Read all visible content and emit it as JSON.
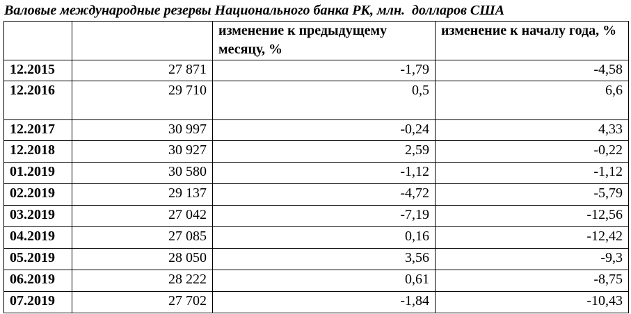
{
  "title": "Валовые международные резервы Национального банка РК, млн.  долларов США",
  "table": {
    "header": [
      "",
      "",
      "изменение к предыдущему месяцу, %",
      "изменение к началу года, %"
    ],
    "rows": [
      [
        "12.2015",
        "27 871",
        "-1,79",
        "-4,58"
      ],
      [
        "12.2016",
        "29 710",
        "0,5",
        "6,6"
      ],
      [
        "12.2017",
        "30 997",
        "-0,24",
        "4,33"
      ],
      [
        "12.2018",
        "30 927",
        "2,59",
        "-0,22"
      ],
      [
        "01.2019",
        "30 580",
        "-1,12",
        "-1,12"
      ],
      [
        "02.2019",
        "29 137",
        "-4,72",
        "-5,79"
      ],
      [
        "03.2019",
        "27 042",
        "-7,19",
        "-12,56"
      ],
      [
        "04.2019",
        "27 085",
        "0,16",
        "-12,42"
      ],
      [
        "05.2019",
        "28 050",
        "3,56",
        "-9,3"
      ],
      [
        "06.2019",
        "28 222",
        "0,61",
        "-8,75"
      ],
      [
        "07.2019",
        "27 702",
        "-1,84",
        "-10,43"
      ]
    ]
  }
}
